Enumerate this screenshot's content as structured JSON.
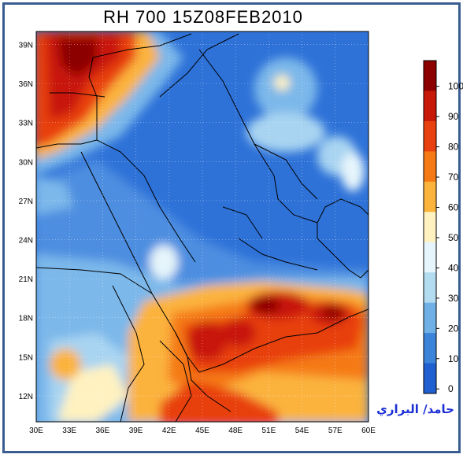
{
  "title": "RH 700  15Z08FEB2010",
  "signature": "حامد/ البراري",
  "map": {
    "lat_labels": [
      "39N",
      "36N",
      "33N",
      "30N",
      "27N",
      "24N",
      "21N",
      "18N",
      "15N",
      "12N"
    ],
    "lat_values": [
      39,
      36,
      33,
      30,
      27,
      24,
      21,
      18,
      15,
      12
    ],
    "lon_labels": [
      "30E",
      "33E",
      "36E",
      "39E",
      "42E",
      "45E",
      "48E",
      "51E",
      "54E",
      "57E",
      "60E"
    ],
    "lon_values": [
      30,
      33,
      36,
      39,
      42,
      45,
      48,
      51,
      54,
      57,
      60
    ],
    "lat_range": [
      10,
      40
    ],
    "lon_range": [
      30,
      60
    ],
    "grid": "dotted"
  },
  "colorbar": {
    "labels": [
      "100",
      "90",
      "80",
      "70",
      "60",
      "50",
      "40",
      "30",
      "20",
      "10",
      "0"
    ],
    "colors": [
      "#8c0000",
      "#c81808",
      "#e8400e",
      "#f57a14",
      "#fbb33c",
      "#fff2c0",
      "#e6f5fb",
      "#b3dcf1",
      "#6fb1e6",
      "#3c84d9",
      "#1f5fcf"
    ]
  },
  "colors": {
    "frame": "#3a5d91",
    "signature": "#1b2fd6"
  }
}
